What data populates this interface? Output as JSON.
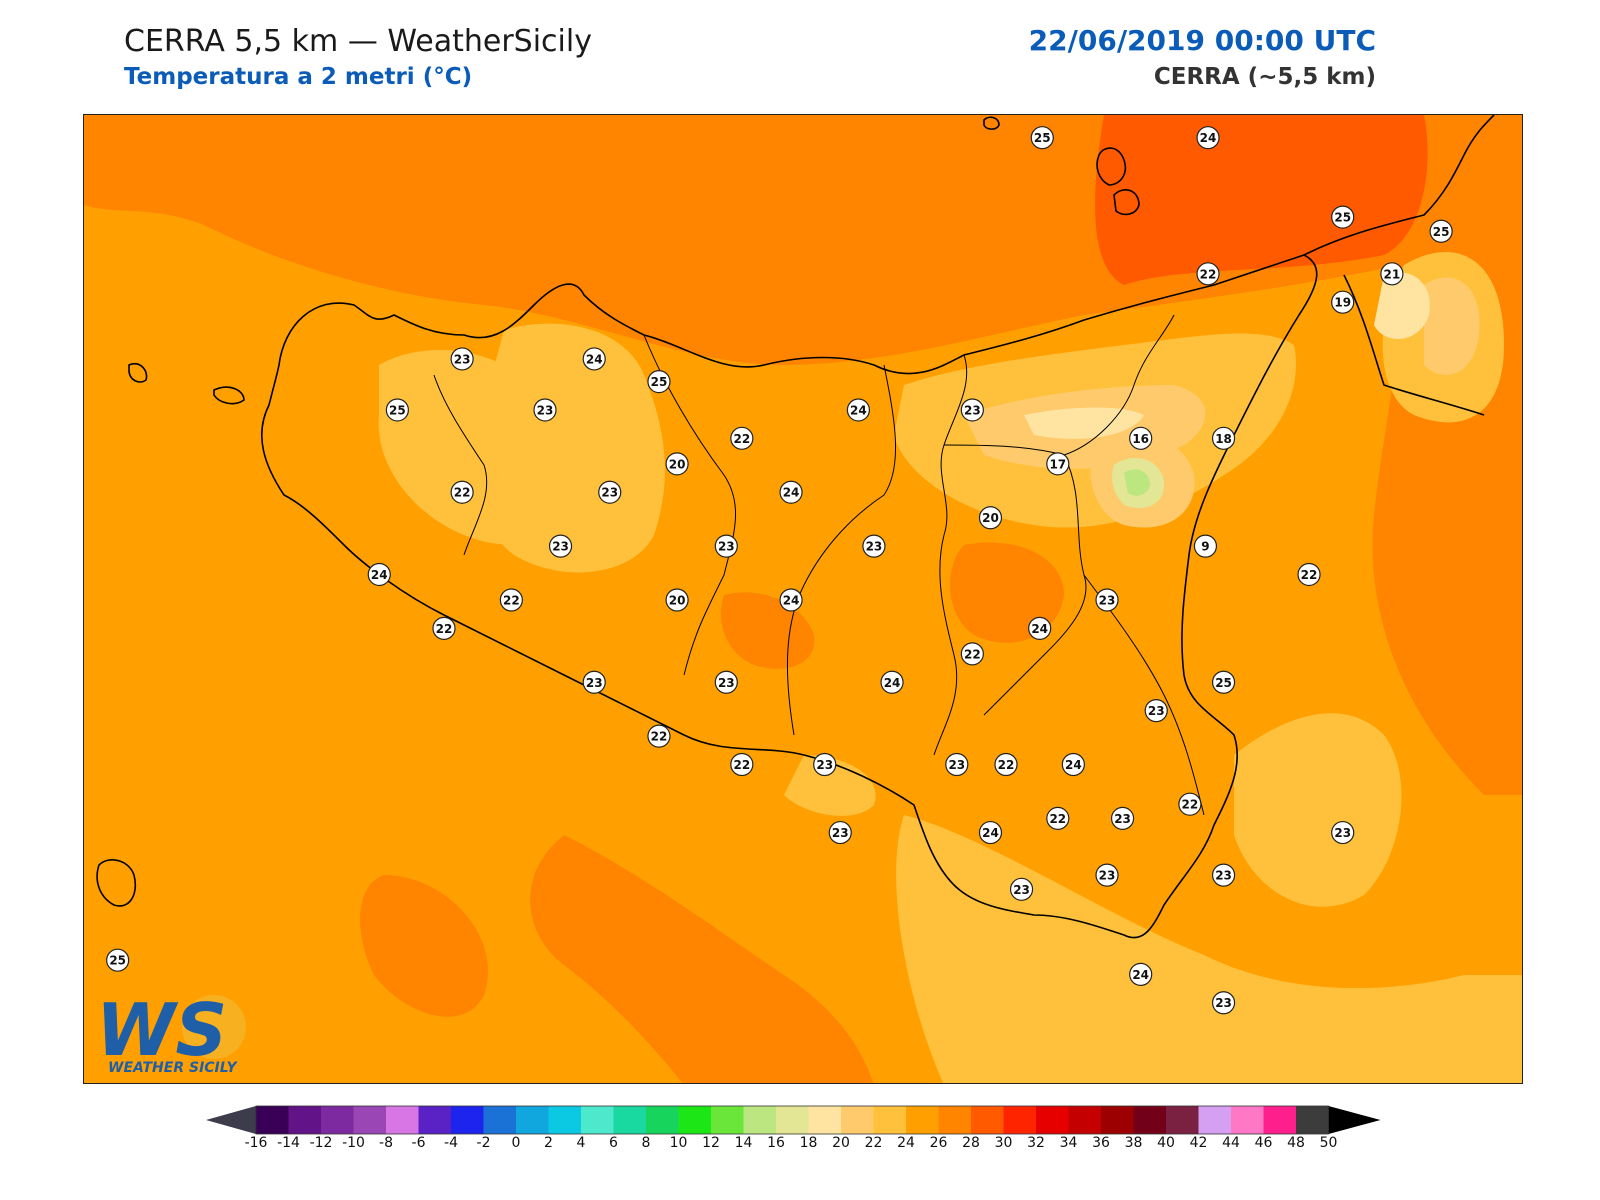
{
  "header": {
    "title": "CERRA 5,5 km — WeatherSicily",
    "subtitle": "Temperatura a 2 metri (°C)",
    "datetime": "22/06/2019 00:00 UTC",
    "model": "CERRA (~5,5 km)"
  },
  "logo": {
    "letters": "WS",
    "text": "WEATHER SICILY"
  },
  "colorbar": {
    "levels": [
      -16,
      -14,
      -12,
      -10,
      -8,
      -6,
      -4,
      -2,
      0,
      2,
      4,
      6,
      8,
      10,
      12,
      14,
      16,
      18,
      20,
      22,
      24,
      26,
      28,
      30,
      32,
      34,
      36,
      38,
      40,
      42,
      44,
      46,
      48,
      50
    ],
    "labels": [
      "-16",
      "-14",
      "-12",
      "-10",
      "-8",
      "-6",
      "-4",
      "-2",
      "0",
      "2",
      "4",
      "6",
      "8",
      "10",
      "12",
      "14",
      "16",
      "18",
      "20",
      "22",
      "24",
      "26",
      "28",
      "30",
      "32",
      "34",
      "36",
      "38",
      "40",
      "42",
      "44",
      "46",
      "48",
      "50"
    ],
    "colors": [
      "#3a0057",
      "#611387",
      "#7d2aa0",
      "#9a46b4",
      "#d876e6",
      "#5a22c5",
      "#1c24ee",
      "#1b72d6",
      "#0fa7dd",
      "#0bc9e3",
      "#4ee8cc",
      "#1ad9a0",
      "#16d45c",
      "#1ce615",
      "#6ae63a",
      "#bce680",
      "#e2e695",
      "#ffe3a1",
      "#ffca6b",
      "#ffc13b",
      "#ffa000",
      "#ff8400",
      "#ff5a00",
      "#ff2400",
      "#e60000",
      "#c40000",
      "#9c0000",
      "#720018",
      "#7a2040",
      "#d6a0f2",
      "#ff78c6",
      "#ff1f8c",
      "#7c7c7c",
      "#3c3c3c"
    ],
    "under_color": "#3c3c4c",
    "over_color": "#000000"
  },
  "stations": [
    {
      "v": "25",
      "x": 12.98,
      "y": 39.1
    },
    {
      "v": "24",
      "x": 13.62,
      "y": 39.1
    },
    {
      "v": "25",
      "x": 14.14,
      "y": 38.82
    },
    {
      "v": "25",
      "x": 14.52,
      "y": 38.77
    },
    {
      "v": "22",
      "x": 13.62,
      "y": 38.62
    },
    {
      "v": "21",
      "x": 14.33,
      "y": 38.62
    },
    {
      "v": "19",
      "x": 14.14,
      "y": 38.52
    },
    {
      "v": "23",
      "x": 10.74,
      "y": 38.32
    },
    {
      "v": "24",
      "x": 11.25,
      "y": 38.32
    },
    {
      "v": "25",
      "x": 11.5,
      "y": 38.24
    },
    {
      "v": "25",
      "x": 10.49,
      "y": 38.14
    },
    {
      "v": "23",
      "x": 11.06,
      "y": 38.14
    },
    {
      "v": "24",
      "x": 12.27,
      "y": 38.14
    },
    {
      "v": "23",
      "x": 12.71,
      "y": 38.14
    },
    {
      "v": "22",
      "x": 11.82,
      "y": 38.04
    },
    {
      "v": "16",
      "x": 13.36,
      "y": 38.04
    },
    {
      "v": "18",
      "x": 13.68,
      "y": 38.04
    },
    {
      "v": "20",
      "x": 11.57,
      "y": 37.95
    },
    {
      "v": "17",
      "x": 13.04,
      "y": 37.95
    },
    {
      "v": "22",
      "x": 10.74,
      "y": 37.85
    },
    {
      "v": "23",
      "x": 11.31,
      "y": 37.85
    },
    {
      "v": "24",
      "x": 12.01,
      "y": 37.85
    },
    {
      "v": "20",
      "x": 12.78,
      "y": 37.76
    },
    {
      "v": "23",
      "x": 11.12,
      "y": 37.66
    },
    {
      "v": "23",
      "x": 11.76,
      "y": 37.66
    },
    {
      "v": "23",
      "x": 12.33,
      "y": 37.66
    },
    {
      "v": "9",
      "x": 13.61,
      "y": 37.66
    },
    {
      "v": "24",
      "x": 10.42,
      "y": 37.56
    },
    {
      "v": "22",
      "x": 14.01,
      "y": 37.56
    },
    {
      "v": "22",
      "x": 10.93,
      "y": 37.47
    },
    {
      "v": "20",
      "x": 11.57,
      "y": 37.47
    },
    {
      "v": "24",
      "x": 12.01,
      "y": 37.47
    },
    {
      "v": "23",
      "x": 13.23,
      "y": 37.47
    },
    {
      "v": "22",
      "x": 10.67,
      "y": 37.37
    },
    {
      "v": "24",
      "x": 12.97,
      "y": 37.37
    },
    {
      "v": "22",
      "x": 12.71,
      "y": 37.28
    },
    {
      "v": "23",
      "x": 11.25,
      "y": 37.18
    },
    {
      "v": "23",
      "x": 11.76,
      "y": 37.18
    },
    {
      "v": "24",
      "x": 12.4,
      "y": 37.18
    },
    {
      "v": "25",
      "x": 13.68,
      "y": 37.18
    },
    {
      "v": "23",
      "x": 13.42,
      "y": 37.08
    },
    {
      "v": "22",
      "x": 11.5,
      "y": 36.99
    },
    {
      "v": "24",
      "x": 13.1,
      "y": 36.89
    },
    {
      "v": "22",
      "x": 11.82,
      "y": 36.89
    },
    {
      "v": "23",
      "x": 12.14,
      "y": 36.89
    },
    {
      "v": "23",
      "x": 12.65,
      "y": 36.89
    },
    {
      "v": "22",
      "x": 12.84,
      "y": 36.89
    },
    {
      "v": "22",
      "x": 13.55,
      "y": 36.75
    },
    {
      "v": "22",
      "x": 13.04,
      "y": 36.7
    },
    {
      "v": "23",
      "x": 13.29,
      "y": 36.7
    },
    {
      "v": "23",
      "x": 14.14,
      "y": 36.65
    },
    {
      "v": "23",
      "x": 12.2,
      "y": 36.65
    },
    {
      "v": "24",
      "x": 12.78,
      "y": 36.65
    },
    {
      "v": "23",
      "x": 13.23,
      "y": 36.5
    },
    {
      "v": "23",
      "x": 13.68,
      "y": 36.5
    },
    {
      "v": "23",
      "x": 12.9,
      "y": 36.45
    },
    {
      "v": "25",
      "x": 9.41,
      "y": 36.2
    },
    {
      "v": "24",
      "x": 13.36,
      "y": 36.15
    },
    {
      "v": "23",
      "x": 13.68,
      "y": 36.05
    }
  ]
}
